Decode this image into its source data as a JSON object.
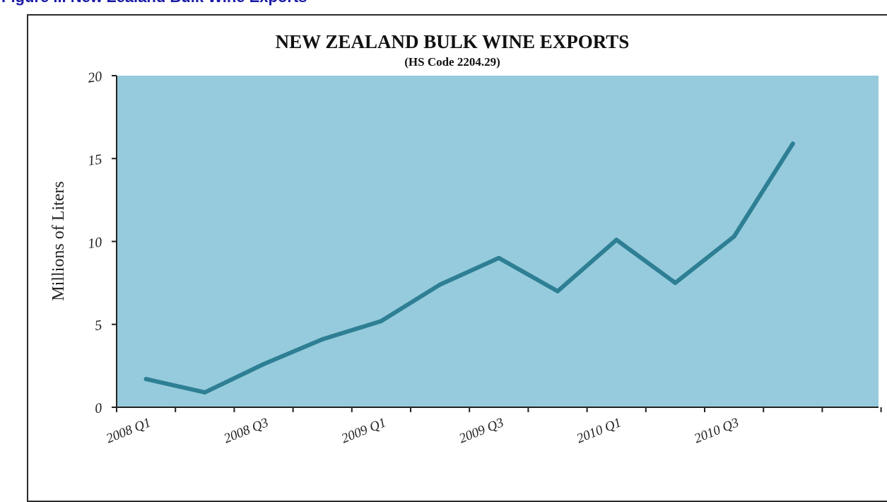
{
  "figure": {
    "caption_partial": "Figure ... New Zealand Bulk Wine Exports"
  },
  "colors": {
    "plot_background": "#95cbdc",
    "line": "#2e7f94",
    "caption": "#1a1aa6",
    "axis": "#222222"
  },
  "chart_data": {
    "type": "line",
    "title": "NEW ZEALAND BULK WINE EXPORTS",
    "subtitle": "(HS Code 2204.29)",
    "xlabel": "",
    "ylabel": "Millions of Liters",
    "ylim": [
      0,
      20
    ],
    "yticks": [
      0,
      5,
      10,
      15,
      20
    ],
    "grid": false,
    "legend": "none",
    "x": [
      "2008 Q1",
      "2008 Q2",
      "2008 Q3",
      "2008 Q4",
      "2009 Q1",
      "2009 Q2",
      "2009 Q3",
      "2009 Q4",
      "2010 Q1",
      "2010 Q2",
      "2010 Q3",
      "2010 Q4"
    ],
    "xtick_labels": [
      "2008 Q1",
      "2008 Q3",
      "2009 Q1",
      "2009 Q3",
      "2010 Q1",
      "2010 Q3"
    ],
    "series": [
      {
        "values": [
          1.7,
          0.9,
          2.6,
          4.1,
          5.2,
          7.4,
          9.0,
          7.0,
          10.1,
          7.5,
          10.3,
          15.9
        ]
      }
    ]
  }
}
